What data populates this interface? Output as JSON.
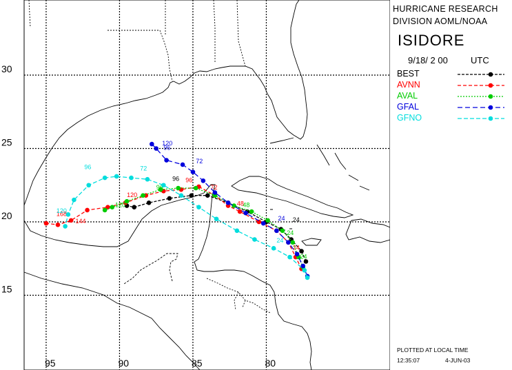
{
  "header": {
    "line1": "HURRICANE RESEARCH",
    "line2": "DIVISION AOML/NOAA",
    "storm_name": "ISIDORE",
    "datetime": "9/18/ 2 00",
    "tz": "UTC"
  },
  "legend": [
    {
      "name": "BEST",
      "color": "#000000",
      "dash": "4,2"
    },
    {
      "name": "AVNN",
      "color": "#ff0000",
      "dash": "5,3"
    },
    {
      "name": "AVAL",
      "color": "#00cc00",
      "dash": "2,2"
    },
    {
      "name": "GFAL",
      "color": "#0000dd",
      "dash": "7,4"
    },
    {
      "name": "GFNO",
      "color": "#00dddd",
      "dash": "6,3"
    }
  ],
  "footer": {
    "note": "PLOTTED AT LOCAL TIME",
    "time": "12:35:07",
    "date": "4-JUN-03"
  },
  "axes": {
    "lat_labels": [
      {
        "value": 30,
        "text": "30"
      },
      {
        "value": 25,
        "text": "25"
      },
      {
        "value": 20,
        "text": "20"
      },
      {
        "value": 15,
        "text": "15"
      }
    ],
    "lon_labels": [
      {
        "value": -95,
        "text": "95"
      },
      {
        "value": -90,
        "text": "90"
      },
      {
        "value": -85,
        "text": "85"
      },
      {
        "value": -80,
        "text": "80"
      }
    ]
  },
  "tracks": [
    {
      "name": "BEST",
      "color": "#000000",
      "points": [
        [
          -77.3,
          17.3
        ],
        [
          -77.6,
          18.0
        ],
        [
          -78.3,
          18.8
        ],
        [
          -79.0,
          19.5
        ],
        [
          -80.0,
          20.0
        ],
        [
          -81.3,
          20.7
        ],
        [
          -82.6,
          21.3
        ],
        [
          -84.0,
          21.8
        ],
        [
          -85.1,
          21.8
        ],
        [
          -86.6,
          21.6
        ],
        [
          -88.0,
          21.3
        ],
        [
          -89.0,
          21.0
        ],
        [
          -89.5,
          21.1
        ]
      ],
      "labels": [
        {
          "text": "96",
          "lon": -86.4,
          "lat": 22.8
        },
        {
          "text": "24",
          "lon": -78.2,
          "lat": 20.0
        }
      ]
    },
    {
      "name": "AVNN",
      "color": "#ff0000",
      "points": [
        [
          -77.6,
          16.8
        ],
        [
          -78.0,
          17.6
        ],
        [
          -78.5,
          18.6
        ],
        [
          -79.3,
          19.4
        ],
        [
          -80.5,
          20.0
        ],
        [
          -81.8,
          20.7
        ],
        [
          -82.6,
          21.1
        ],
        [
          -83.5,
          21.8
        ],
        [
          -84.6,
          22.4
        ],
        [
          -85.8,
          22.2
        ],
        [
          -87.0,
          22.1
        ],
        [
          -88.2,
          21.8
        ],
        [
          -89.6,
          21.3
        ],
        [
          -90.8,
          21.0
        ],
        [
          -92.2,
          20.8
        ],
        [
          -93.3,
          20.1
        ],
        [
          -94.2,
          19.8
        ],
        [
          -95.0,
          19.9
        ]
      ],
      "labels": [
        {
          "text": "24",
          "lon": -78.2,
          "lat": 18.1
        },
        {
          "text": "48",
          "lon": -82.0,
          "lat": 21.1
        },
        {
          "text": "72",
          "lon": -83.8,
          "lat": 22.2
        },
        {
          "text": "96",
          "lon": -85.5,
          "lat": 22.7
        },
        {
          "text": "120",
          "lon": -89.5,
          "lat": 21.7
        },
        {
          "text": "144",
          "lon": -93.0,
          "lat": 19.9
        },
        {
          "text": "168",
          "lon": -94.3,
          "lat": 20.4
        }
      ]
    },
    {
      "name": "AVAL",
      "color": "#00cc00",
      "points": [
        [
          -77.5,
          16.9
        ],
        [
          -77.8,
          17.6
        ],
        [
          -78.2,
          18.6
        ],
        [
          -78.9,
          19.4
        ],
        [
          -79.9,
          20.1
        ],
        [
          -81.0,
          20.7
        ],
        [
          -82.2,
          21.1
        ],
        [
          -83.5,
          21.8
        ],
        [
          -84.8,
          22.3
        ],
        [
          -86.0,
          22.3
        ],
        [
          -87.2,
          22.2
        ],
        [
          -88.4,
          21.8
        ],
        [
          -89.5,
          21.4
        ],
        [
          -90.5,
          21.0
        ],
        [
          -91.0,
          20.8
        ]
      ],
      "labels": [
        {
          "text": "24",
          "lon": -77.7,
          "lat": 17.5
        },
        {
          "text": "24",
          "lon": -78.6,
          "lat": 19.1
        },
        {
          "text": "48",
          "lon": -81.6,
          "lat": 21.0
        },
        {
          "text": "96",
          "lon": -87.5,
          "lat": 22.2
        },
        {
          "text": "120",
          "lon": -90.3,
          "lat": 21.0
        }
      ]
    },
    {
      "name": "GFAL",
      "color": "#0000dd",
      "points": [
        [
          -77.2,
          16.3
        ],
        [
          -77.5,
          17.0
        ],
        [
          -77.9,
          17.8
        ],
        [
          -78.5,
          18.6
        ],
        [
          -79.3,
          19.4
        ],
        [
          -80.2,
          19.9
        ],
        [
          -81.4,
          20.6
        ],
        [
          -82.6,
          21.3
        ],
        [
          -83.5,
          22.0
        ],
        [
          -84.3,
          22.8
        ],
        [
          -85.0,
          23.4
        ],
        [
          -85.7,
          23.9
        ],
        [
          -86.8,
          24.2
        ],
        [
          -87.5,
          25.0
        ],
        [
          -87.8,
          25.3
        ]
      ],
      "labels": [
        {
          "text": "24",
          "lon": -79.2,
          "lat": 20.1
        },
        {
          "text": "72",
          "lon": -84.8,
          "lat": 24.0
        },
        {
          "text": "96",
          "lon": -87.0,
          "lat": 24.9
        },
        {
          "text": "120",
          "lon": -87.1,
          "lat": 25.2
        }
      ]
    },
    {
      "name": "GFNO",
      "color": "#00dddd",
      "points": [
        [
          -77.2,
          16.2
        ],
        [
          -77.4,
          16.7
        ],
        [
          -78.4,
          17.6
        ],
        [
          -79.5,
          18.2
        ],
        [
          -80.8,
          18.8
        ],
        [
          -82.0,
          19.4
        ],
        [
          -83.4,
          20.2
        ],
        [
          -84.6,
          21.0
        ],
        [
          -85.8,
          21.8
        ],
        [
          -87.0,
          22.5
        ],
        [
          -88.1,
          22.9
        ],
        [
          -89.2,
          23.0
        ],
        [
          -90.2,
          23.1
        ],
        [
          -91.0,
          23.0
        ],
        [
          -92.1,
          22.5
        ],
        [
          -93.1,
          21.5
        ],
        [
          -93.5,
          20.5
        ],
        [
          -93.7,
          19.7
        ]
      ],
      "labels": [
        {
          "text": "24",
          "lon": -79.3,
          "lat": 18.6
        },
        {
          "text": "72",
          "lon": -88.6,
          "lat": 23.5
        },
        {
          "text": "96",
          "lon": -92.4,
          "lat": 23.6
        },
        {
          "text": "120",
          "lon": -94.3,
          "lat": 20.6
        }
      ]
    }
  ]
}
